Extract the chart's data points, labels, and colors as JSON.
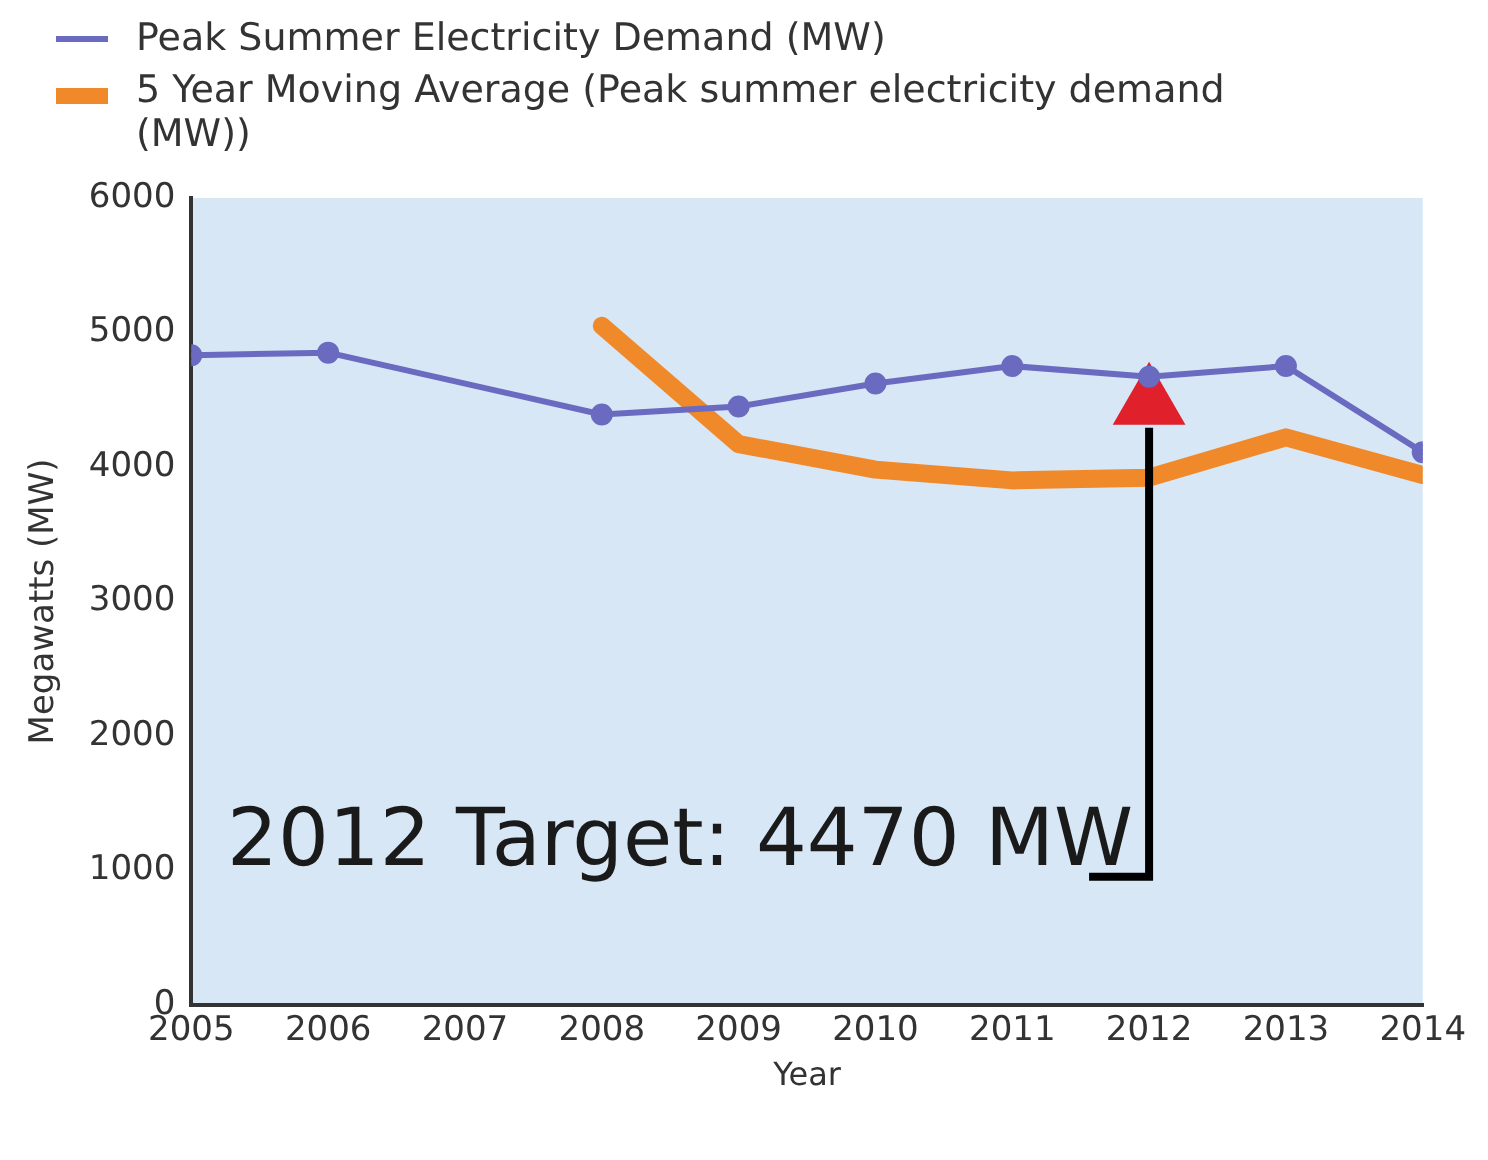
{
  "chart_data": {
    "type": "line",
    "xlabel": "Year",
    "ylabel": "Megawatts (MW)",
    "x": [
      2005,
      2006,
      2008,
      2009,
      2010,
      2011,
      2012,
      2013,
      2014
    ],
    "series": [
      {
        "name": "Peak Summer Electricity Demand (MW)",
        "color": "#6a6bc0",
        "marker": "circle",
        "values": [
          4830,
          4850,
          4390,
          4450,
          4620,
          4750,
          4670,
          4750,
          4110
        ]
      },
      {
        "name": "5 Year Moving Average (Peak summer electricity demand (MW))",
        "color": "#f0892a",
        "marker": "none",
        "x": [
          2008,
          2009,
          2010,
          2011,
          2012,
          2013,
          2014
        ],
        "values": [
          5050,
          4170,
          3980,
          3900,
          3920,
          4220,
          3940
        ]
      },
      {
        "type": "scatter",
        "color": "#e0202a",
        "marker": "triangle",
        "x": [
          2012
        ],
        "values": [
          4470
        ]
      }
    ],
    "xlim": [
      2005,
      2014
    ],
    "xticks": [
      2005,
      2006,
      2007,
      2008,
      2009,
      2010,
      2011,
      2012,
      2013,
      2014
    ],
    "ylim": [
      0,
      6000
    ],
    "yticks": [
      0,
      1000,
      2000,
      3000,
      4000,
      5000,
      6000
    ],
    "grid": false,
    "legend": "top left",
    "annotations": [
      "2012 Target: 4470 MW"
    ]
  }
}
